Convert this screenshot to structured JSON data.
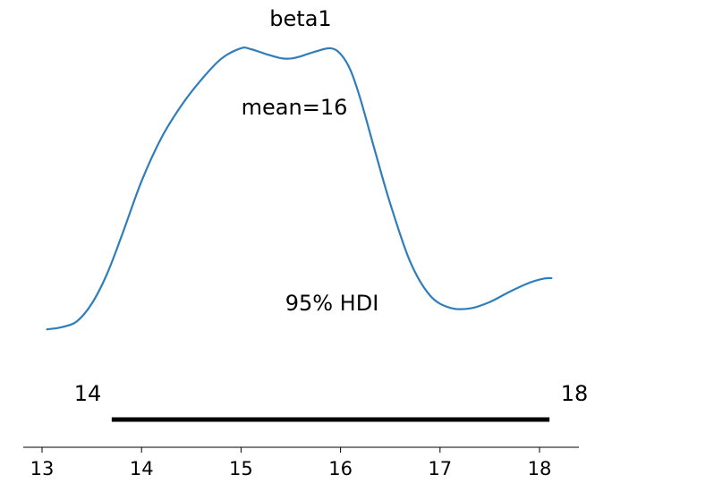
{
  "chart_data": {
    "type": "line",
    "title": "beta1",
    "xlabel": "",
    "ylabel": "",
    "xlim": [
      12.95,
      18.35
    ],
    "xticks": [
      "13",
      "14",
      "15",
      "16",
      "17",
      "18"
    ],
    "grid": false,
    "series": [
      {
        "color": "#2f7ebc",
        "x": [
          13.05,
          13.2,
          13.35,
          13.5,
          13.65,
          13.8,
          14.0,
          14.2,
          14.4,
          14.6,
          14.8,
          15.0,
          15.1,
          15.25,
          15.4,
          15.5,
          15.6,
          15.75,
          15.9,
          16.0,
          16.1,
          16.2,
          16.35,
          16.5,
          16.7,
          16.9,
          17.1,
          17.3,
          17.5,
          17.7,
          17.9,
          18.05,
          18.12
        ],
        "y": [
          0.005,
          0.012,
          0.03,
          0.085,
          0.175,
          0.295,
          0.465,
          0.6,
          0.7,
          0.78,
          0.845,
          0.878,
          0.875,
          0.86,
          0.847,
          0.846,
          0.853,
          0.868,
          0.878,
          0.86,
          0.81,
          0.72,
          0.555,
          0.395,
          0.215,
          0.11,
          0.072,
          0.07,
          0.09,
          0.122,
          0.15,
          0.163,
          0.164
        ]
      }
    ],
    "annotations": {
      "mean": "mean=16",
      "hdi_label": "95% HDI",
      "hdi_low_label": "14",
      "hdi_high_label": "18"
    },
    "hdi": [
      13.7,
      18.1
    ]
  }
}
